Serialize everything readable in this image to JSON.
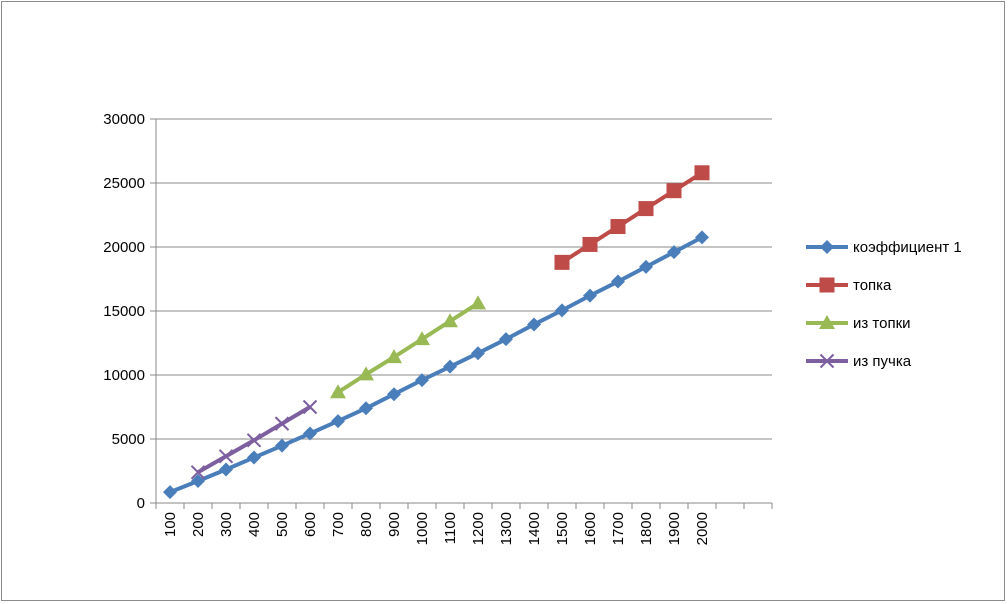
{
  "chart_data": {
    "type": "line",
    "categories": [
      "100",
      "200",
      "300",
      "400",
      "500",
      "600",
      "700",
      "800",
      "900",
      "1000",
      "1100",
      "1200",
      "1300",
      "1400",
      "1500",
      "1600",
      "1700",
      "1800",
      "1900",
      "2000",
      "",
      ""
    ],
    "ylim": [
      0,
      30000
    ],
    "yticks": [
      0,
      5000,
      10000,
      15000,
      20000,
      25000,
      30000
    ],
    "grid": true,
    "legend_position": "right",
    "series": [
      {
        "name": "коэффициент 1",
        "color": "#4a7ebb",
        "marker": "diamond",
        "values": [
          850,
          1720,
          2620,
          3550,
          4480,
          5430,
          6400,
          7400,
          8500,
          9600,
          10650,
          11700,
          12800,
          13950,
          15050,
          16200,
          17300,
          18450,
          19600,
          20750,
          null,
          null
        ]
      },
      {
        "name": "топка",
        "color": "#be4b48",
        "marker": "square",
        "values": [
          null,
          null,
          null,
          null,
          null,
          null,
          null,
          null,
          null,
          null,
          null,
          null,
          null,
          null,
          18800,
          20200,
          21600,
          23000,
          24400,
          25800,
          null,
          null
        ]
      },
      {
        "name": "из топки",
        "color": "#98b954",
        "marker": "triangle",
        "values": [
          null,
          null,
          null,
          null,
          null,
          null,
          8650,
          10050,
          11400,
          12800,
          14200,
          15600,
          null,
          null,
          null,
          null,
          null,
          null,
          null,
          null,
          null,
          null
        ]
      },
      {
        "name": "из пучка",
        "color": "#7d5fa0",
        "marker": "x",
        "values": [
          null,
          2400,
          3650,
          4900,
          6200,
          7500,
          null,
          null,
          null,
          null,
          null,
          null,
          null,
          null,
          null,
          null,
          null,
          null,
          null,
          null,
          null,
          null
        ]
      }
    ]
  }
}
